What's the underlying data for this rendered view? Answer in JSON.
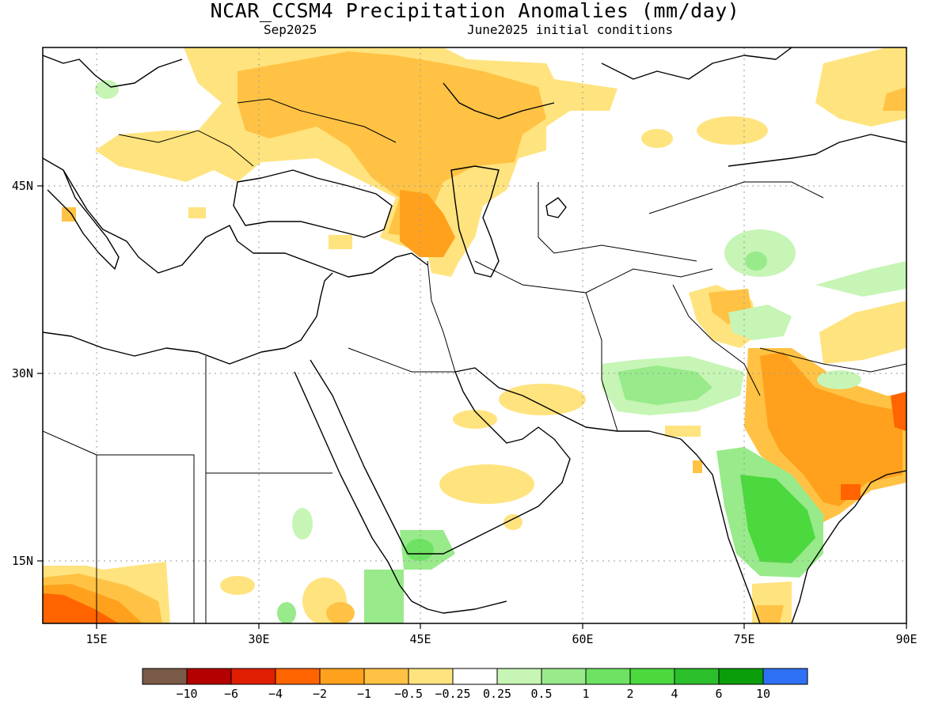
{
  "title": "NCAR_CCSM4 Precipitation Anomalies (mm/day)",
  "valid_month": "Sep2025",
  "init_conditions": "June2025 initial conditions",
  "axes": {
    "lon_labels": [
      "15E",
      "30E",
      "45E",
      "60E",
      "75E",
      "90E"
    ],
    "lat_labels": [
      "45N",
      "30N",
      "15N"
    ],
    "lon_range": [
      10,
      90
    ],
    "lat_range": [
      10,
      55
    ],
    "grid": "dotted"
  },
  "legend": {
    "colors": [
      "#7a5a48",
      "#b40000",
      "#e01e00",
      "#ff6400",
      "#ffa11d",
      "#ffc244",
      "#ffe37e",
      "#ffffff",
      "#c6f5b5",
      "#98ea8a",
      "#6ee363",
      "#4bd93e",
      "#2cbf2c",
      "#0b9e0b",
      "#2f71f5"
    ],
    "labels": [
      "-10",
      "-6",
      "-4",
      "-2",
      "-1",
      "-0.5",
      "-0.25",
      "0.25",
      "0.5",
      "1",
      "2",
      "4",
      "6",
      "10"
    ]
  },
  "colors": {
    "dry_light": "#ffe37e",
    "dry_mid": "#ffc244",
    "dry_strong": "#ffa11d",
    "dry_very": "#ff6400",
    "wet_light": "#c6f5b5",
    "wet_mid": "#98ea8a",
    "wet_strong": "#4bd93e"
  }
}
